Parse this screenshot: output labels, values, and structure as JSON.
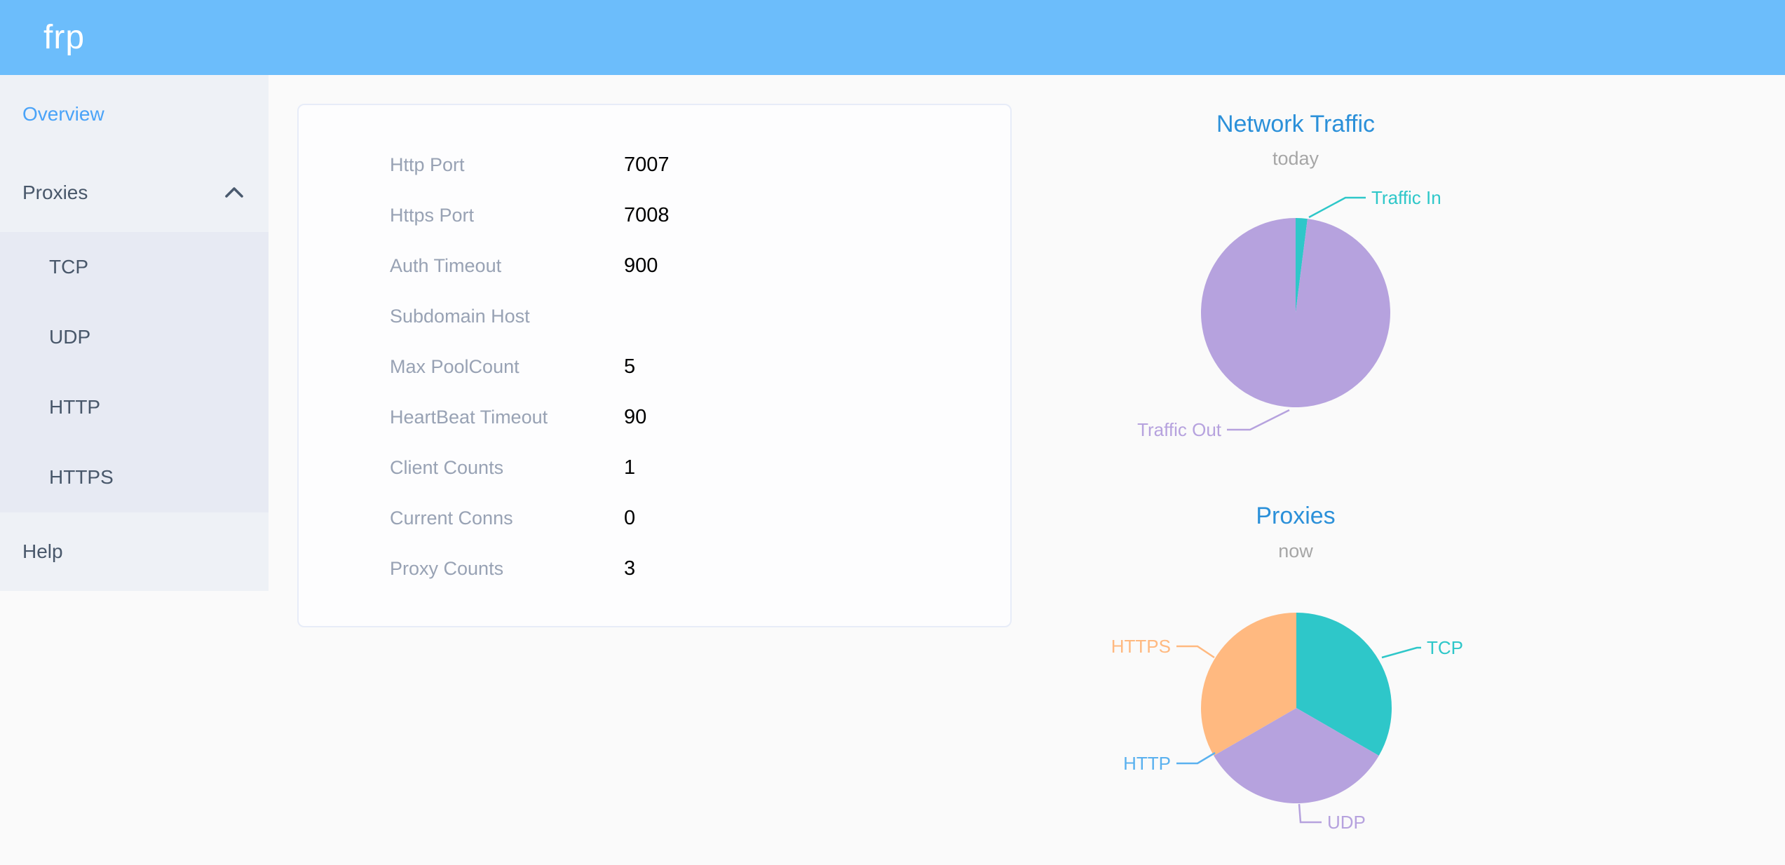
{
  "header": {
    "logo": "frp"
  },
  "colors": {
    "header_bg": "#6cbdfb",
    "sidebar_bg": "#eef1f6",
    "submenu_bg": "#e7eaf3",
    "menu_text": "#48576a",
    "menu_active": "#4aa3f8",
    "chart_title": "#2b90d9",
    "teal": "#2ec7c9",
    "purple": "#b6a2de",
    "orange": "#ffb980",
    "blue": "#5ab1ef"
  },
  "sidebar": {
    "items": [
      {
        "label": "Overview"
      },
      {
        "label": "Proxies"
      },
      {
        "label": "TCP"
      },
      {
        "label": "UDP"
      },
      {
        "label": "HTTP"
      },
      {
        "label": "HTTPS"
      },
      {
        "label": "Help"
      }
    ]
  },
  "overview_table": {
    "rows": [
      {
        "label": "Http Port",
        "value": "7007"
      },
      {
        "label": "Https Port",
        "value": "7008"
      },
      {
        "label": "Auth Timeout",
        "value": "900"
      },
      {
        "label": "Subdomain Host",
        "value": ""
      },
      {
        "label": "Max PoolCount",
        "value": "5"
      },
      {
        "label": "HeartBeat Timeout",
        "value": "90"
      },
      {
        "label": "Client Counts",
        "value": "1"
      },
      {
        "label": "Current Conns",
        "value": "0"
      },
      {
        "label": "Proxy Counts",
        "value": "3"
      }
    ]
  },
  "chart_data": [
    {
      "type": "pie",
      "title": "Network Traffic",
      "subtitle": "today",
      "legend_position": "none",
      "values_note": "percent estimated from slice angles, no numeric labels shown",
      "slices": [
        {
          "label": "Traffic In",
          "value": 2,
          "color": "#2ec7c9"
        },
        {
          "label": "Traffic Out",
          "value": 98,
          "color": "#b6a2de"
        }
      ]
    },
    {
      "type": "pie",
      "title": "Proxies",
      "subtitle": "now",
      "legend_position": "none",
      "values_note": "proxy counts per type; HTTP slice is zero-sized",
      "slices": [
        {
          "label": "TCP",
          "value": 1,
          "color": "#2ec7c9"
        },
        {
          "label": "UDP",
          "value": 1,
          "color": "#b6a2de"
        },
        {
          "label": "HTTP",
          "value": 0,
          "color": "#5ab1ef"
        },
        {
          "label": "HTTPS",
          "value": 1,
          "color": "#ffb980"
        }
      ]
    }
  ]
}
